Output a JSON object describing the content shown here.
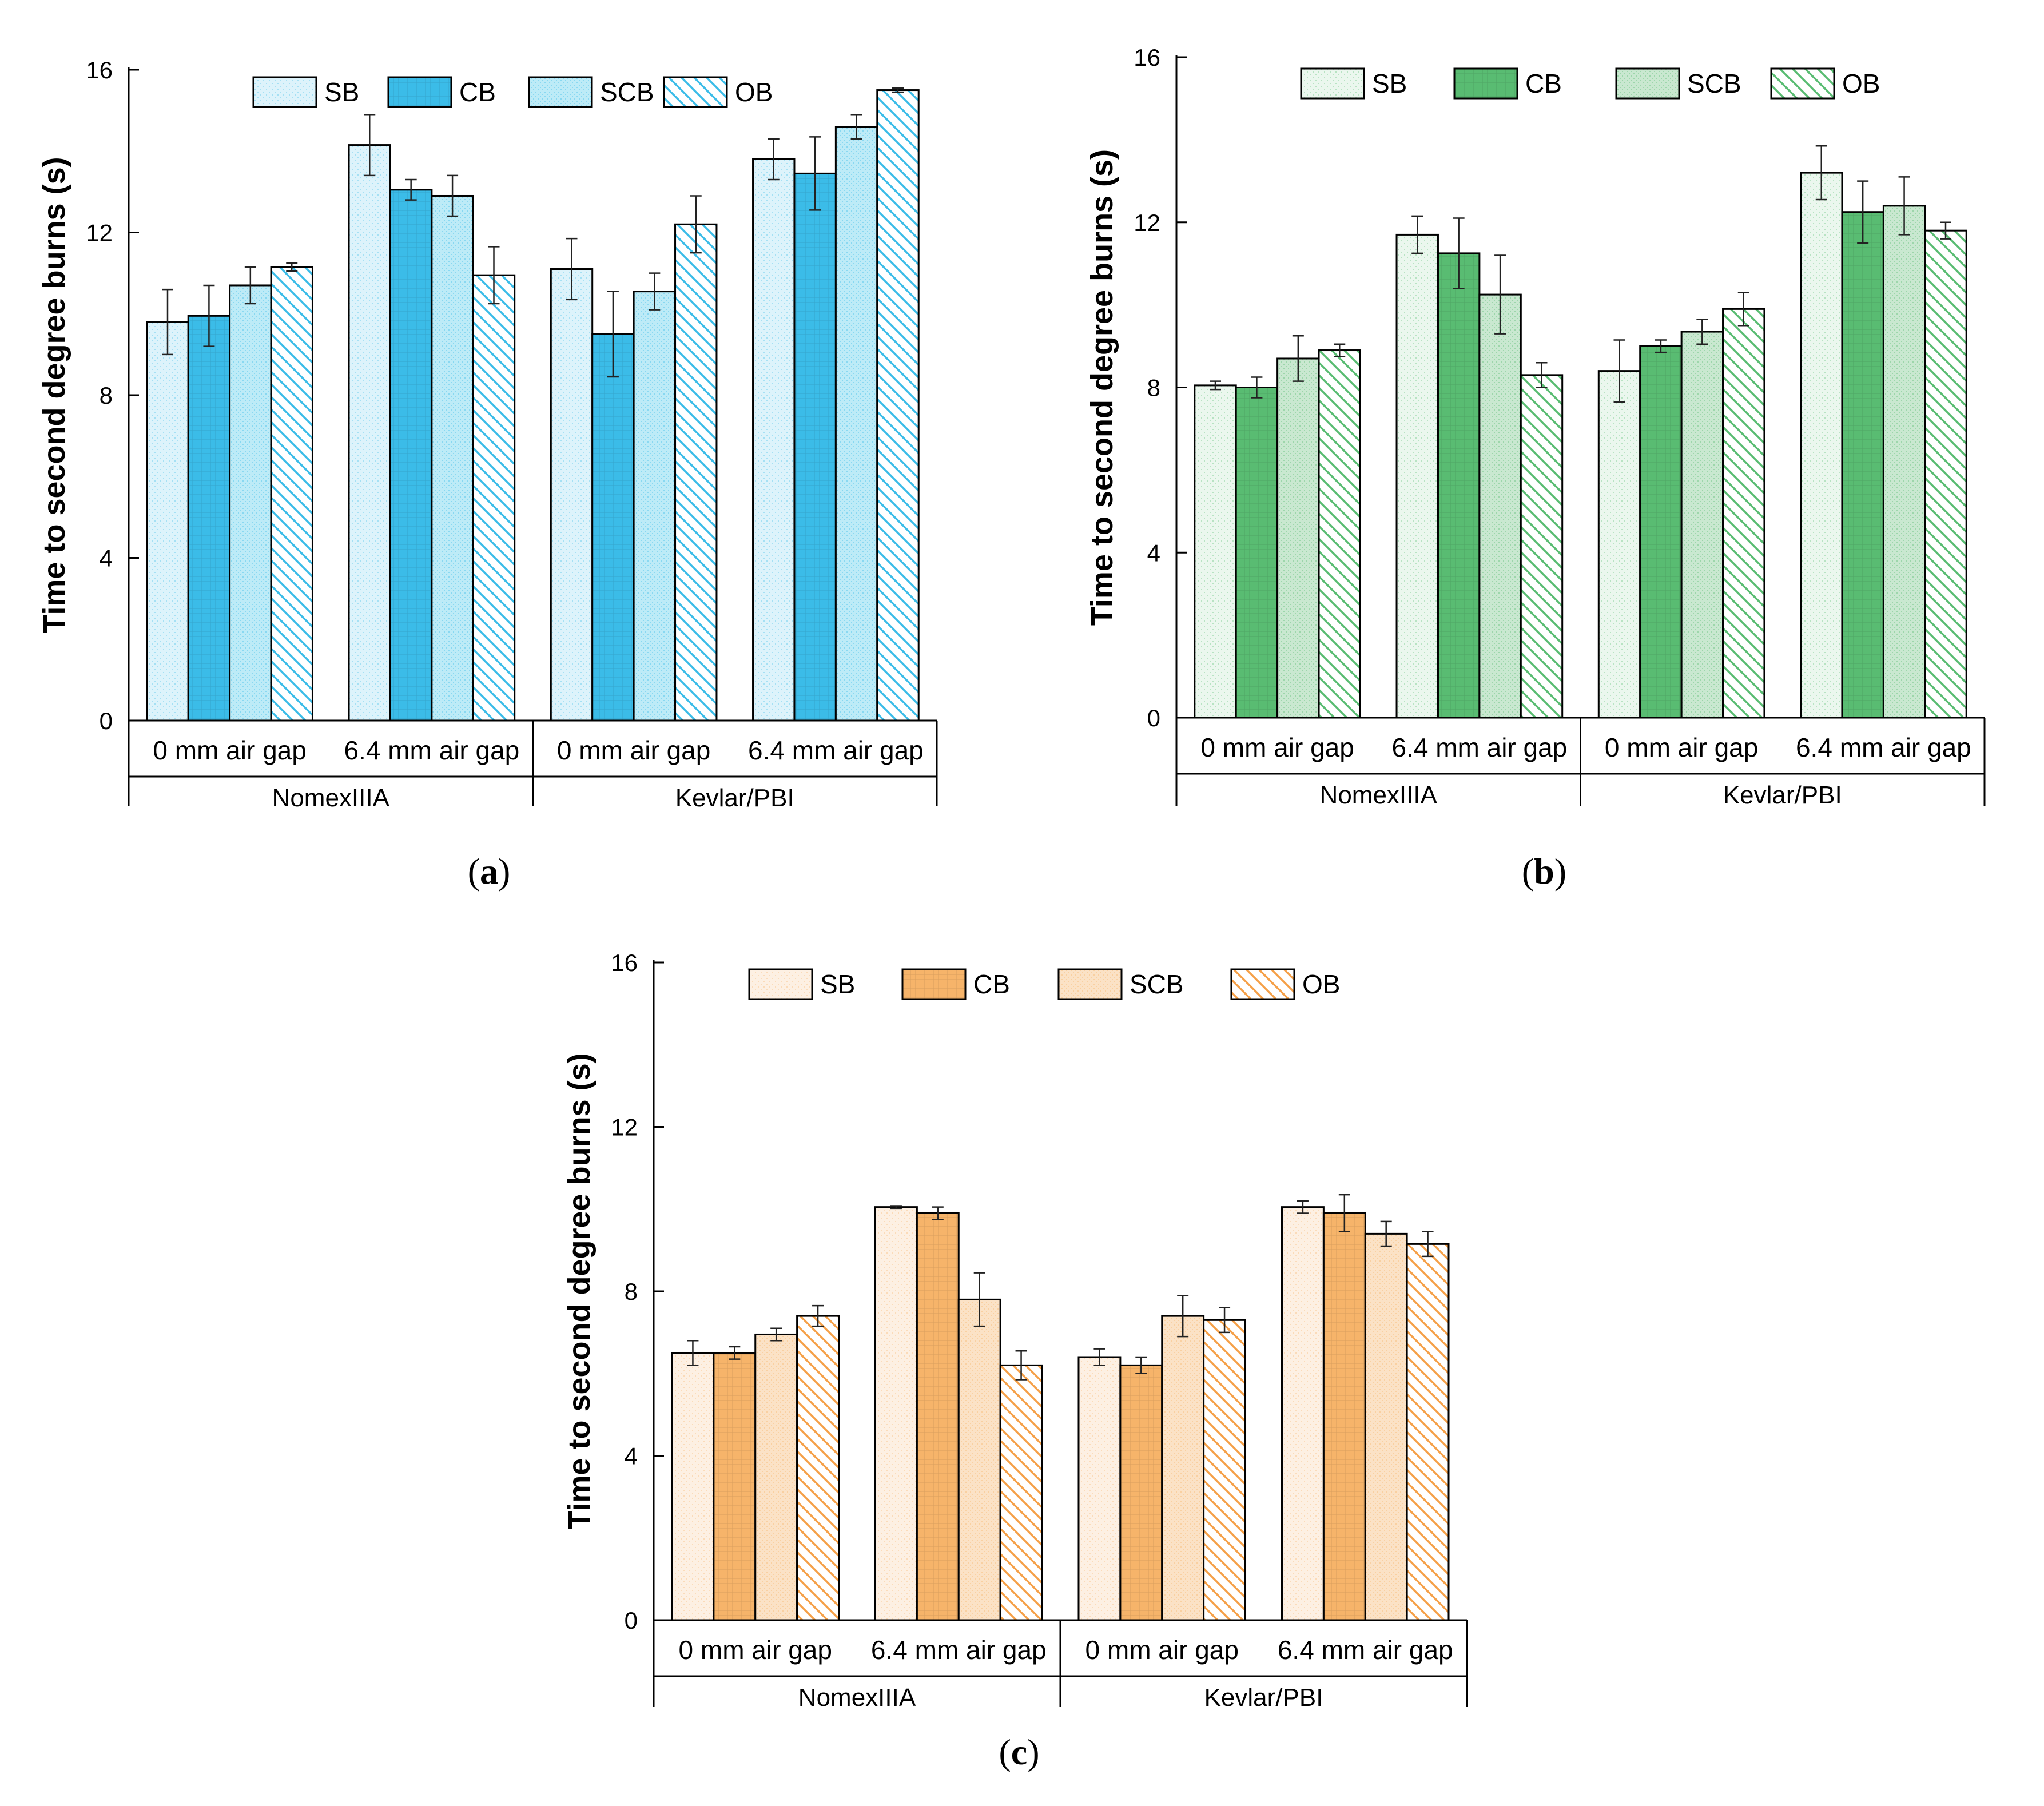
{
  "figure": {
    "series_names": [
      "SB",
      "CB",
      "SCB",
      "OB"
    ],
    "series_colors": {
      "a": [
        "#ddf3fb",
        "#3bbce8",
        "#bdebf7",
        "#3bbce8"
      ],
      "b": [
        "#ebf7ee",
        "#59bc72",
        "#c9e8d0",
        "#59bc72"
      ],
      "c": [
        "#fdf0e3",
        "#f6b46a",
        "#fbe2c6",
        "#f5a048"
      ]
    }
  },
  "chart_data": [
    {
      "panel": "a",
      "panel_label": "a",
      "type": "bar",
      "ylabel": "Time to second degree burns (s)",
      "ylim": [
        0,
        16
      ],
      "yticks": [
        "0",
        "4",
        "8",
        "12",
        "16"
      ],
      "categories": [
        "0 mm air gap",
        "6.4 mm air gap",
        "0 mm air gap",
        "6.4 mm air gap"
      ],
      "groups": [
        "NomexIIIA",
        "Kevlar/PBI"
      ],
      "legend": [
        "SB",
        "CB",
        "SCB",
        "OB"
      ],
      "series": [
        {
          "name": "SB",
          "values": [
            9.8,
            14.15,
            11.1,
            13.8
          ],
          "errors": [
            0.8,
            0.75,
            0.75,
            0.5
          ]
        },
        {
          "name": "CB",
          "values": [
            9.95,
            13.05,
            9.5,
            13.45
          ],
          "errors": [
            0.75,
            0.25,
            1.05,
            0.9
          ]
        },
        {
          "name": "SCB",
          "values": [
            10.7,
            12.9,
            10.55,
            14.6
          ],
          "errors": [
            0.45,
            0.5,
            0.45,
            0.3
          ]
        },
        {
          "name": "OB",
          "values": [
            11.15,
            10.95,
            12.2,
            15.5
          ],
          "errors": [
            0.1,
            0.7,
            0.7,
            0.05
          ]
        }
      ]
    },
    {
      "panel": "b",
      "panel_label": "b",
      "type": "bar",
      "ylabel": "Time to second degree burns (s)",
      "ylim": [
        0,
        16
      ],
      "yticks": [
        "0",
        "4",
        "8",
        "12",
        "16"
      ],
      "categories": [
        "0 mm air gap",
        "6.4 mm air gap",
        "0 mm air gap",
        "6.4 mm air gap"
      ],
      "groups": [
        "NomexIIIA",
        "Kevlar/PBI"
      ],
      "legend": [
        "SB",
        "CB",
        "SCB",
        "OB"
      ],
      "series": [
        {
          "name": "SB",
          "values": [
            8.05,
            11.7,
            8.4,
            13.2
          ],
          "errors": [
            0.1,
            0.45,
            0.75,
            0.65
          ]
        },
        {
          "name": "CB",
          "values": [
            8.0,
            11.25,
            9.0,
            12.25
          ],
          "errors": [
            0.25,
            0.85,
            0.15,
            0.75
          ]
        },
        {
          "name": "SCB",
          "values": [
            8.7,
            10.25,
            9.35,
            12.4
          ],
          "errors": [
            0.55,
            0.95,
            0.3,
            0.7
          ]
        },
        {
          "name": "OB",
          "values": [
            8.9,
            8.3,
            9.9,
            11.8
          ],
          "errors": [
            0.15,
            0.3,
            0.4,
            0.2
          ]
        }
      ]
    },
    {
      "panel": "c",
      "panel_label": "c",
      "type": "bar",
      "ylabel": "Time to second degree burns (s)",
      "ylim": [
        0,
        16
      ],
      "yticks": [
        "0",
        "4",
        "8",
        "12",
        "16"
      ],
      "categories": [
        "0 mm air gap",
        "6.4 mm air gap",
        "0 mm air gap",
        "6.4 mm air gap"
      ],
      "groups": [
        "NomexIIIA",
        "Kevlar/PBI"
      ],
      "legend": [
        "SB",
        "CB",
        "SCB",
        "OB"
      ],
      "series": [
        {
          "name": "SB",
          "values": [
            6.5,
            10.05,
            6.4,
            10.05
          ],
          "errors": [
            0.3,
            0.03,
            0.2,
            0.15
          ]
        },
        {
          "name": "CB",
          "values": [
            6.5,
            9.9,
            6.2,
            9.9
          ],
          "errors": [
            0.15,
            0.15,
            0.2,
            0.45
          ]
        },
        {
          "name": "SCB",
          "values": [
            6.95,
            7.8,
            7.4,
            9.4
          ],
          "errors": [
            0.15,
            0.65,
            0.5,
            0.3
          ]
        },
        {
          "name": "OB",
          "values": [
            7.4,
            6.2,
            7.3,
            9.15
          ],
          "errors": [
            0.25,
            0.35,
            0.3,
            0.3
          ]
        }
      ]
    }
  ]
}
